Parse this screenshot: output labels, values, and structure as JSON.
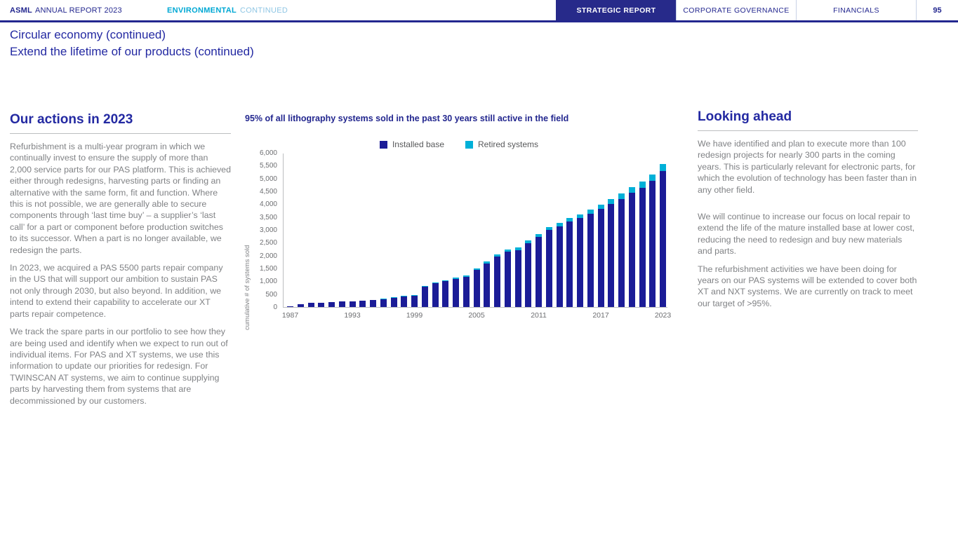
{
  "header": {
    "brand_bold": "ASML",
    "brand_rest": "ANNUAL REPORT 2023",
    "section_bold": "ENVIRONMENTAL",
    "section_rest": "CONTINUED",
    "tabs": [
      {
        "label": "STRATEGIC REPORT",
        "active": true
      },
      {
        "label": "CORPORATE GOVERNANCE",
        "active": false
      },
      {
        "label": "FINANCIALS",
        "active": false
      }
    ],
    "page_number": "95"
  },
  "page": {
    "title_line1": "Circular economy (continued)",
    "title_line2": "Extend the lifetime of our products (continued)"
  },
  "left_column": {
    "heading": "Our actions in 2023",
    "paragraphs": [
      "Refurbishment is a multi-year program in which we continually invest to ensure the supply of more than 2,000 service parts for our PAS platform. This is achieved either through redesigns, harvesting parts or finding an alternative with the same form, fit and function. Where this is not possible, we are generally able to secure components through ‘last time buy’ – a supplier’s ‘last call’ for a part or component before production switches to its successor. When a part is no longer available, we redesign the parts.",
      "In 2023, we acquired a PAS 5500 parts repair company in the US that will support our ambition to sustain PAS not only through 2030, but also beyond. In addition, we intend to extend their capability to accelerate our XT parts repair competence.",
      "We track the spare parts in our portfolio to see how they are being used and identify when we expect to run out of individual items. For PAS and XT systems, we use this information to update our priorities for redesign. For TWINSCAN AT systems, we aim to continue supplying parts by harvesting them from systems that are decommissioned by our customers."
    ]
  },
  "right_column": {
    "heading": "Looking ahead",
    "paragraphs": [
      "We have identified and plan to execute more than 100 redesign projects for nearly 300 parts in the coming years. This is particularly relevant for electronic parts, for which the evolution of technology has been faster than in any other field.",
      "We will continue to increase our focus on local repair to extend the life of the mature installed base at lower cost, reducing the need to redesign and buy new materials and parts.",
      "The refurbishment activities we have been doing for years on our PAS systems will be extended to cover both XT and NXT systems. We are currently on track to meet our target of >95%."
    ]
  },
  "chart": {
    "title": "95% of all lithography systems sold in the past 30 years still active in the field"
  },
  "chart_data": {
    "type": "bar",
    "stacked": true,
    "title": "95% of all lithography systems sold in the past 30 years still active in the field",
    "xlabel": "",
    "ylabel": "cumulative # of systems sold",
    "ylim": [
      0,
      6000
    ],
    "ytick_step": 500,
    "grid": false,
    "legend_position": "top",
    "x": [
      1987,
      1988,
      1989,
      1990,
      1991,
      1992,
      1993,
      1994,
      1995,
      1996,
      1997,
      1998,
      1999,
      2000,
      2001,
      2002,
      2003,
      2004,
      2005,
      2006,
      2007,
      2008,
      2009,
      2010,
      2011,
      2012,
      2013,
      2014,
      2015,
      2016,
      2017,
      2018,
      2019,
      2020,
      2021,
      2022,
      2023
    ],
    "x_axis_labels": [
      1987,
      1993,
      1999,
      2005,
      2011,
      2017,
      2023
    ],
    "series": [
      {
        "name": "Installed base",
        "color": "#1b1c97",
        "values": [
          25,
          110,
          160,
          175,
          190,
          205,
          220,
          245,
          270,
          295,
          345,
          400,
          445,
          795,
          925,
          1000,
          1100,
          1175,
          1435,
          1695,
          1965,
          2145,
          2220,
          2480,
          2740,
          3000,
          3130,
          3330,
          3460,
          3640,
          3820,
          4020,
          4210,
          4440,
          4640,
          4900,
          5290
        ]
      },
      {
        "name": "Retired systems",
        "color": "#00b0d8",
        "values": [
          0,
          0,
          0,
          0,
          0,
          0,
          0,
          0,
          0,
          5,
          5,
          10,
          15,
          20,
          25,
          30,
          40,
          45,
          55,
          65,
          75,
          85,
          90,
          100,
          110,
          120,
          130,
          140,
          150,
          160,
          170,
          190,
          210,
          230,
          250,
          260,
          280
        ]
      }
    ]
  },
  "colors": {
    "navy_text": "#2329a2",
    "navy_header": "#23278f",
    "navy_tab_bg": "#272a8a",
    "bar_navy": "#1b1c97",
    "bar_cyan": "#00b0d8",
    "section_cyan": "#00a8d4",
    "section_light": "#8fc6e4",
    "body_gray": "#808285"
  }
}
